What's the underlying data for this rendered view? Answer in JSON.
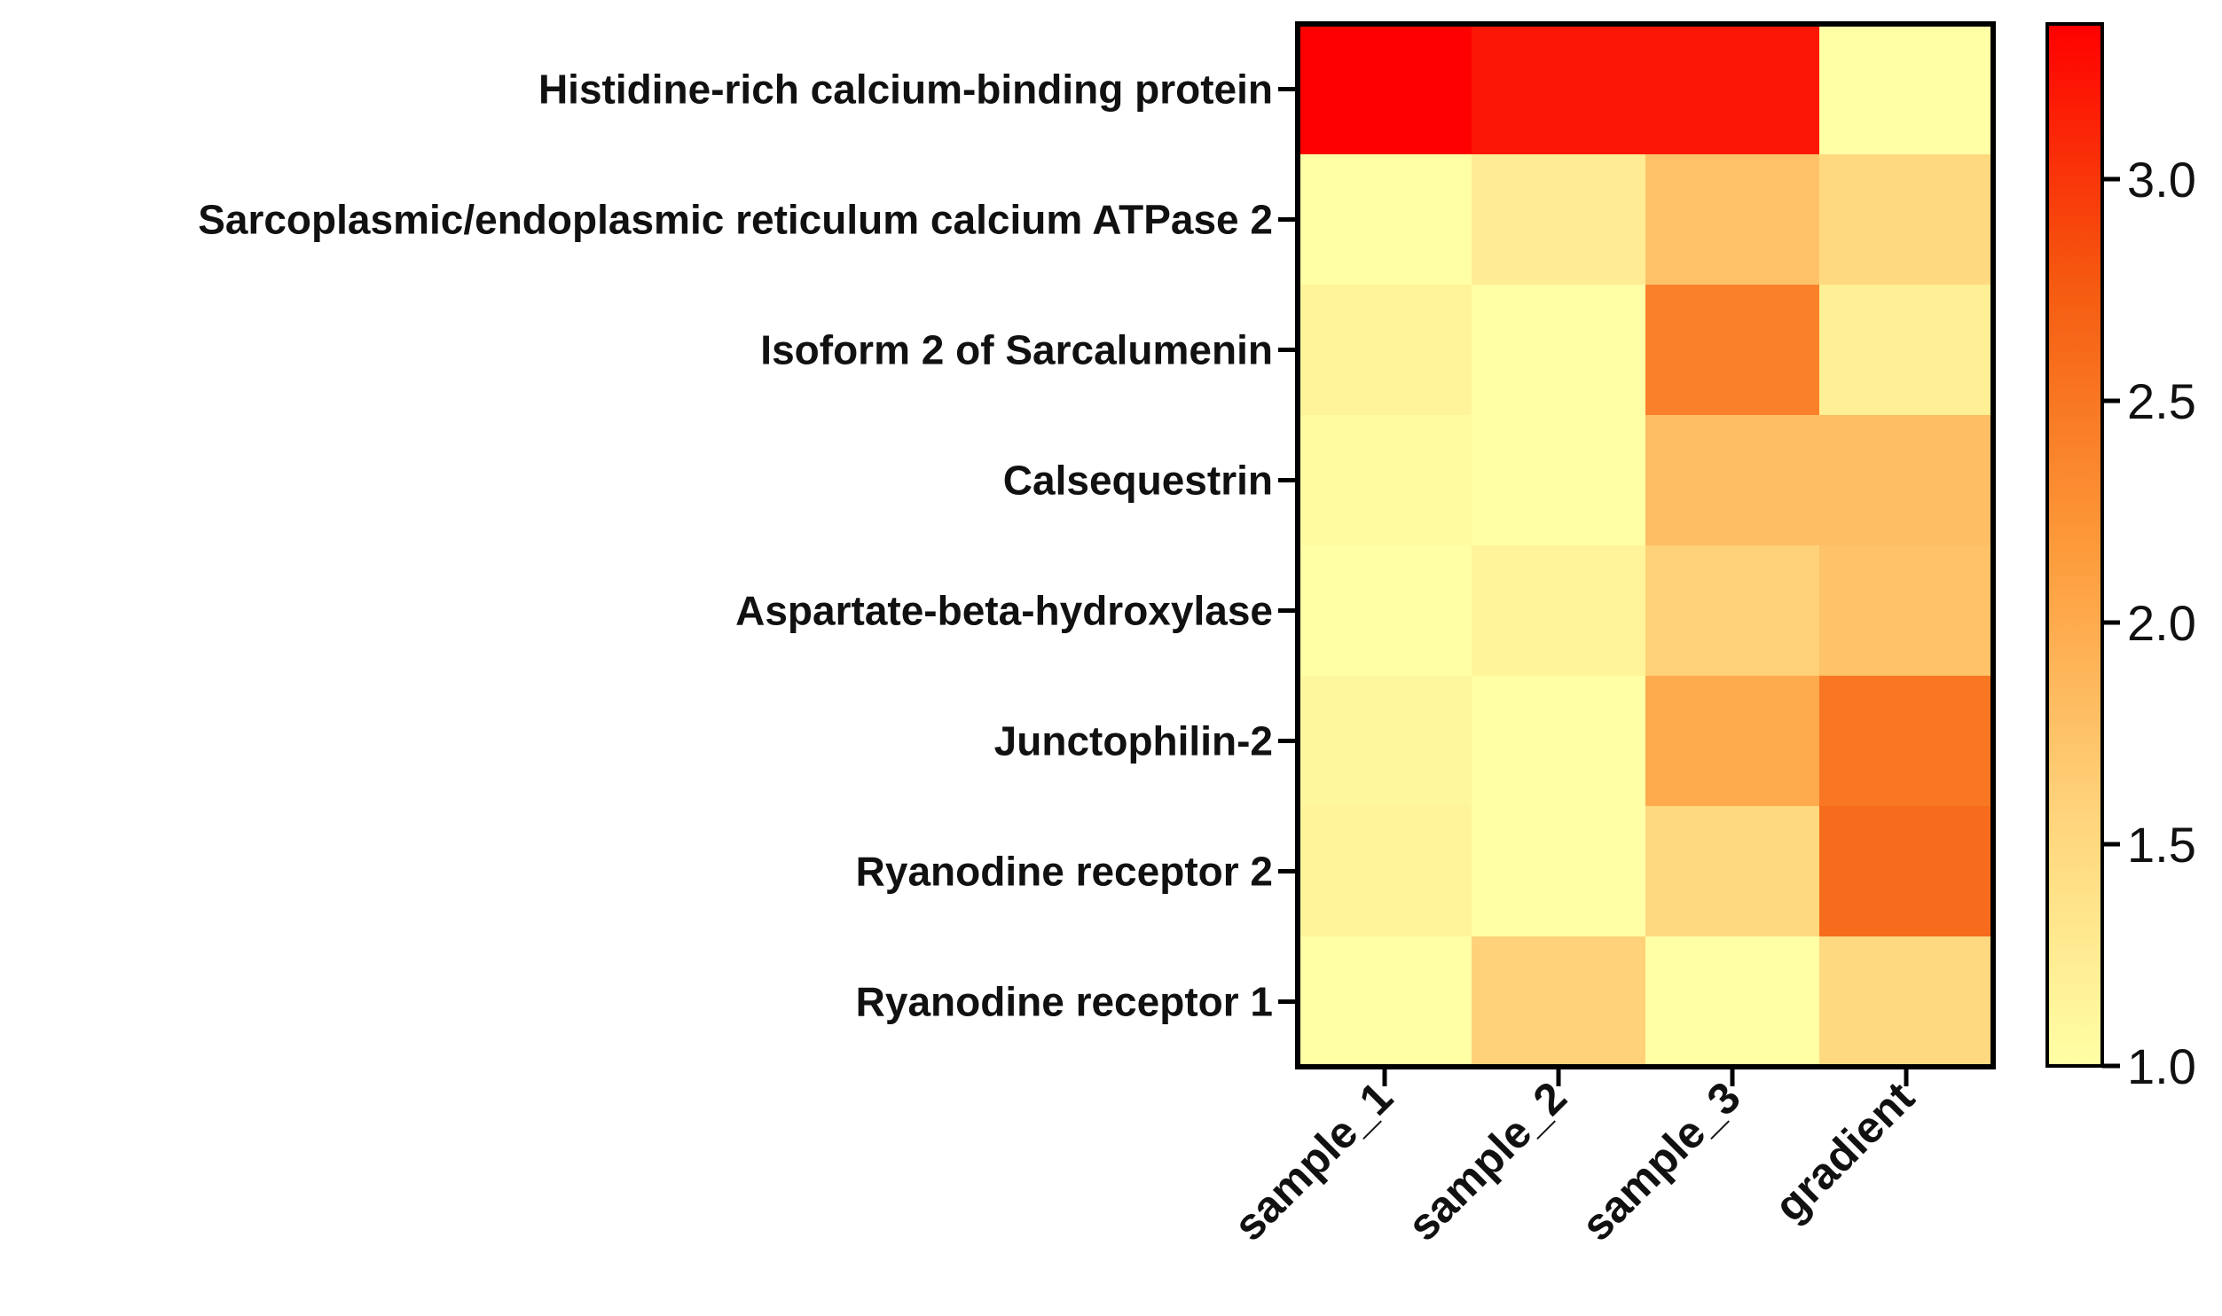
{
  "chart_data": {
    "type": "heatmap",
    "title": "",
    "xlabel": "",
    "ylabel": "",
    "rows": [
      "Histidine-rich calcium-binding protein",
      "Sarcoplasmic/endoplasmic reticulum calcium ATPase 2",
      "Isoform 2 of Sarcalumenin",
      "Calsequestrin",
      "Aspartate-beta-hydroxylase",
      "Junctophilin-2",
      "Ryanodine receptor 2",
      "Ryanodine receptor 1"
    ],
    "columns": [
      "sample_1",
      "sample_2",
      "sample_3",
      "gradient"
    ],
    "values": [
      [
        3.35,
        3.2,
        3.2,
        1.0
      ],
      [
        1.0,
        1.25,
        1.75,
        1.5
      ],
      [
        1.15,
        1.0,
        2.4,
        1.2
      ],
      [
        1.05,
        1.0,
        1.8,
        1.8
      ],
      [
        1.0,
        1.15,
        1.6,
        1.75
      ],
      [
        1.1,
        1.0,
        2.0,
        2.5
      ],
      [
        1.15,
        1.0,
        1.5,
        2.6
      ],
      [
        1.0,
        1.6,
        1.0,
        1.5
      ]
    ],
    "colorbar": {
      "range": [
        1.0,
        3.35
      ],
      "ticks": [
        1.0,
        1.5,
        2.0,
        2.5,
        3.0
      ],
      "tick_labels": [
        "1.0",
        "1.5",
        "2.0",
        "2.5",
        "3.0"
      ],
      "colors": [
        "#ffffa5",
        "#ffd27a",
        "#fd9a3a",
        "#f55a10",
        "#ff0000"
      ]
    }
  }
}
